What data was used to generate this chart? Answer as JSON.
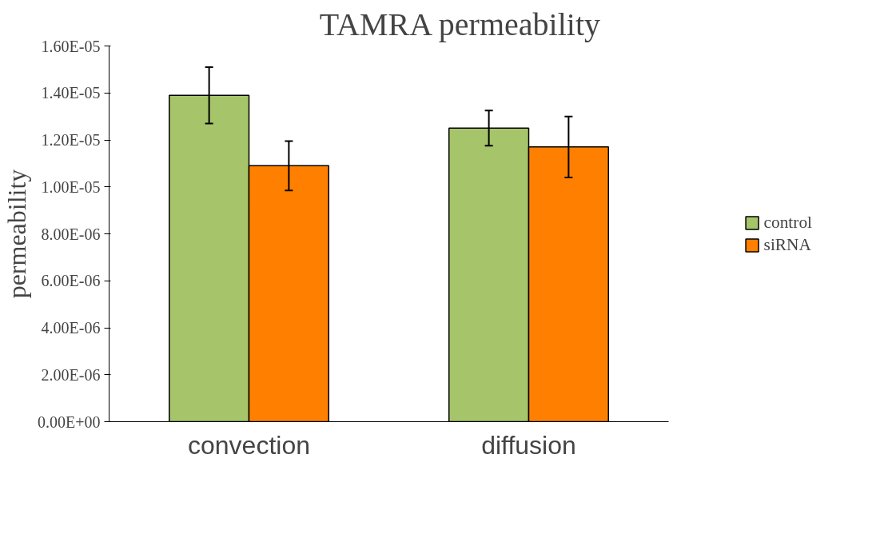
{
  "chart_data": {
    "type": "bar",
    "title": "TAMRA permeability",
    "ylabel": "permeability",
    "categories": [
      "convection",
      "diffusion"
    ],
    "series": [
      {
        "name": "control",
        "color": "#a6c46a",
        "values": [
          1.39e-05,
          1.25e-05
        ],
        "errors": [
          1.2e-06,
          7.5e-07
        ]
      },
      {
        "name": "siRNA",
        "color": "#ff8000",
        "values": [
          1.09e-05,
          1.17e-05
        ],
        "errors": [
          1.05e-06,
          1.3e-06
        ]
      }
    ],
    "ylim": [
      0,
      1.6e-05
    ],
    "yticks": [
      {
        "value": 0,
        "label": "0.00E+00"
      },
      {
        "value": 2e-06,
        "label": "2.00E-06"
      },
      {
        "value": 4e-06,
        "label": "4.00E-06"
      },
      {
        "value": 6e-06,
        "label": "6.00E-06"
      },
      {
        "value": 8e-06,
        "label": "8.00E-06"
      },
      {
        "value": 1e-05,
        "label": "1.00E-05"
      },
      {
        "value": 1.2e-05,
        "label": "1.20E-05"
      },
      {
        "value": 1.4e-05,
        "label": "1.40E-05"
      },
      {
        "value": 1.6e-05,
        "label": "1.60E-05"
      }
    ],
    "grid": false,
    "legend": "right"
  }
}
